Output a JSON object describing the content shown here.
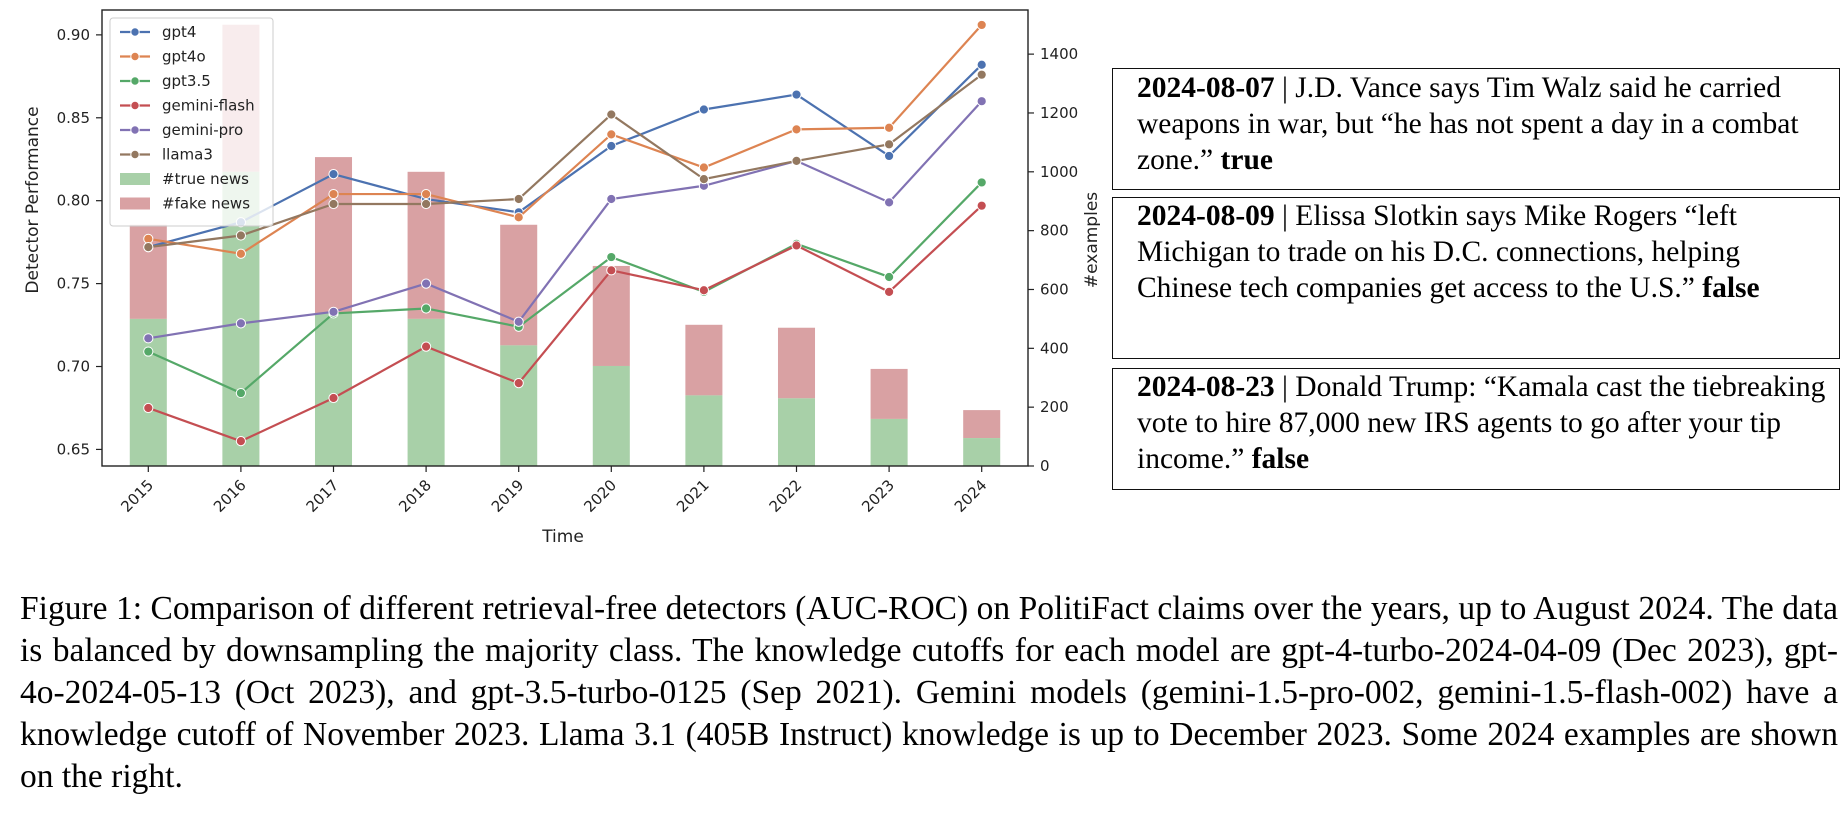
{
  "chart_data": {
    "type": "line",
    "xlabel": "Time",
    "ylabel": "Detector Performance",
    "y2label": "#examples",
    "categories": [
      "2015",
      "2016",
      "2017",
      "2018",
      "2019",
      "2020",
      "2021",
      "2022",
      "2023",
      "2024"
    ],
    "ylim": [
      0.64,
      0.915
    ],
    "y2lim": [
      0,
      1550
    ],
    "yticks": [
      "0.65",
      "0.70",
      "0.75",
      "0.80",
      "0.85",
      "0.90"
    ],
    "y2ticks": [
      "0",
      "200",
      "400",
      "600",
      "800",
      "1000",
      "1200",
      "1400"
    ],
    "grid": false,
    "legend_position": "top-left",
    "series": [
      {
        "name": "gpt4",
        "color": "#4c72b0",
        "values": [
          0.772,
          0.787,
          0.816,
          0.801,
          0.793,
          0.833,
          0.855,
          0.864,
          0.827,
          0.882
        ]
      },
      {
        "name": "gpt4o",
        "color": "#dd8452",
        "values": [
          0.777,
          0.768,
          0.804,
          0.804,
          0.79,
          0.84,
          0.82,
          0.843,
          0.844,
          0.906
        ]
      },
      {
        "name": "gpt3.5",
        "color": "#55a868",
        "values": [
          0.709,
          0.684,
          0.732,
          0.735,
          0.724,
          0.766,
          0.745,
          0.774,
          0.754,
          0.811
        ]
      },
      {
        "name": "gemini-flash",
        "color": "#c44e52",
        "values": [
          0.675,
          0.655,
          0.681,
          0.712,
          0.69,
          0.758,
          0.746,
          0.773,
          0.745,
          0.797
        ]
      },
      {
        "name": "gemini-pro",
        "color": "#8172b3",
        "values": [
          0.717,
          0.726,
          0.733,
          0.75,
          0.727,
          0.801,
          0.809,
          0.824,
          0.799,
          0.86
        ]
      },
      {
        "name": "llama3",
        "color": "#937860",
        "values": [
          0.772,
          0.779,
          0.798,
          0.798,
          0.801,
          0.852,
          0.813,
          0.824,
          0.834,
          0.876
        ]
      }
    ],
    "bars": [
      {
        "name": "#true news",
        "color": "#a8d0a8",
        "values": [
          500,
          1000,
          520,
          500,
          410,
          340,
          240,
          230,
          160,
          95
        ]
      },
      {
        "name": "#fake news",
        "color": "#d9a1a3",
        "values": [
          820,
          1500,
          1050,
          1000,
          820,
          680,
          480,
          470,
          330,
          190
        ]
      }
    ]
  },
  "claims": [
    {
      "date": "2024-08-07",
      "text": " | J.D. Vance says Tim Walz said he carried weapons in war, but “he has not spent a day in a combat zone.” ",
      "label": "true"
    },
    {
      "date": "2024-08-09",
      "text": " | Elissa Slotkin says Mike Rogers “left Michigan to trade on his D.C. connections, helping Chinese tech companies get access to the U.S.” ",
      "label": "false"
    },
    {
      "date": "2024-08-23",
      "text": " | Donald Trump: “Kamala cast the tiebreaking vote to hire 87,000 new IRS agents to go after your tip income.” ",
      "label": "false"
    }
  ],
  "caption": "Figure 1: Comparison of different retrieval-free detectors (AUC-ROC) on PolitiFact claims over the years, up to August 2024. The data is balanced by downsampling the majority class. The knowledge cutoffs for each model are gpt-4-turbo-2024-04-09 (Dec 2023), gpt-4o-2024-05-13 (Oct 2023), and gpt-3.5-turbo-0125 (Sep 2021). Gemini models (gemini-1.5-pro-002, gemini-1.5-flash-002) have a knowledge cutoff of November 2023. Llama 3.1 (405B Instruct) knowledge is up to December 2023. Some 2024 examples are shown on the right."
}
